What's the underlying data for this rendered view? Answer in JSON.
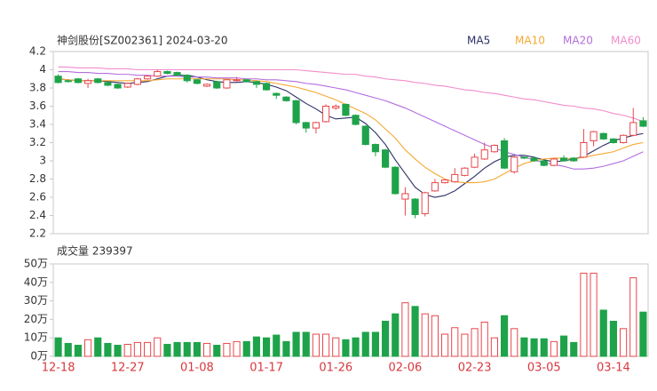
{
  "chart_data": [
    {
      "type": "candlestick",
      "title": "神剑股份[SZ002361] 2024-03-20",
      "categories": [
        "12-18",
        null,
        null,
        null,
        null,
        null,
        null,
        "12-27",
        null,
        null,
        null,
        null,
        null,
        null,
        "01-08",
        null,
        null,
        null,
        null,
        null,
        null,
        "01-17",
        null,
        null,
        null,
        null,
        null,
        null,
        "01-26",
        null,
        null,
        null,
        null,
        null,
        null,
        "02-06",
        null,
        null,
        null,
        null,
        null,
        null,
        "02-23",
        null,
        null,
        null,
        null,
        null,
        null,
        "03-05",
        null,
        null,
        null,
        null,
        null,
        null,
        "03-14",
        null,
        null,
        null
      ],
      "open": [
        3.93,
        3.88,
        3.9,
        3.85,
        3.9,
        3.86,
        3.84,
        3.81,
        3.84,
        3.9,
        3.93,
        3.98,
        3.97,
        3.94,
        3.89,
        3.82,
        3.87,
        3.8,
        3.88,
        3.89,
        3.87,
        3.85,
        3.74,
        3.7,
        3.66,
        3.42,
        3.36,
        3.43,
        3.58,
        3.62,
        3.5,
        3.38,
        3.18,
        3.12,
        2.93,
        2.58,
        2.58,
        2.42,
        2.67,
        2.76,
        2.77,
        2.84,
        2.93,
        3.02,
        3.1,
        3.22,
        2.88,
        3.04,
        3.03,
        3.0,
        2.95,
        3.03,
        3.03,
        3.04,
        3.22,
        3.3,
        3.24,
        3.2,
        3.28,
        3.44
      ],
      "high": [
        3.95,
        3.89,
        3.91,
        3.9,
        3.91,
        3.87,
        3.85,
        3.86,
        3.91,
        3.94,
        4.0,
        3.99,
        3.98,
        3.95,
        3.9,
        3.85,
        3.88,
        3.9,
        3.92,
        3.9,
        3.88,
        3.86,
        3.75,
        3.71,
        3.67,
        3.43,
        3.43,
        3.62,
        3.62,
        3.63,
        3.51,
        3.39,
        3.19,
        3.13,
        2.94,
        2.71,
        2.59,
        2.66,
        2.8,
        2.8,
        2.92,
        2.93,
        3.08,
        3.2,
        3.18,
        3.25,
        3.05,
        3.05,
        3.04,
        3.01,
        3.03,
        3.06,
        3.04,
        3.35,
        3.33,
        3.31,
        3.25,
        3.29,
        3.58,
        3.48
      ],
      "low": [
        3.85,
        3.86,
        3.85,
        3.8,
        3.85,
        3.82,
        3.79,
        3.8,
        3.83,
        3.89,
        3.92,
        3.95,
        3.93,
        3.86,
        3.84,
        3.81,
        3.79,
        3.79,
        3.87,
        3.86,
        3.8,
        3.77,
        3.68,
        3.65,
        3.4,
        3.31,
        3.3,
        3.42,
        3.56,
        3.49,
        3.39,
        3.17,
        3.05,
        2.92,
        2.63,
        2.4,
        2.37,
        2.39,
        2.66,
        2.75,
        2.76,
        2.83,
        2.92,
        3.01,
        3.09,
        2.91,
        2.86,
        3.02,
        2.99,
        2.94,
        2.94,
        2.99,
        2.99,
        3.03,
        3.16,
        3.23,
        3.19,
        3.19,
        3.27,
        3.37
      ],
      "close": [
        3.86,
        3.87,
        3.86,
        3.88,
        3.86,
        3.83,
        3.8,
        3.85,
        3.9,
        3.93,
        3.98,
        3.96,
        3.94,
        3.88,
        3.85,
        3.84,
        3.8,
        3.89,
        3.89,
        3.87,
        3.84,
        3.78,
        3.72,
        3.66,
        3.42,
        3.36,
        3.42,
        3.6,
        3.6,
        3.5,
        3.4,
        3.18,
        3.1,
        2.93,
        2.64,
        2.64,
        2.41,
        2.65,
        2.76,
        2.79,
        2.85,
        2.92,
        3.04,
        3.12,
        3.17,
        2.92,
        3.04,
        3.03,
        3.0,
        2.95,
        3.02,
        3.0,
        3.0,
        3.2,
        3.32,
        3.24,
        3.2,
        3.28,
        3.42,
        3.38
      ],
      "up_color": "#e8474c",
      "down_color": "#1fa34a",
      "series": [
        {
          "name": "MA5",
          "color": "#2b2f66",
          "values": [
            3.9,
            3.89,
            3.88,
            3.88,
            3.88,
            3.87,
            3.86,
            3.85,
            3.86,
            3.87,
            3.9,
            3.93,
            3.94,
            3.94,
            3.92,
            3.89,
            3.87,
            3.86,
            3.86,
            3.87,
            3.86,
            3.84,
            3.81,
            3.77,
            3.7,
            3.63,
            3.57,
            3.5,
            3.46,
            3.47,
            3.48,
            3.41,
            3.31,
            3.18,
            3.01,
            2.86,
            2.71,
            2.63,
            2.6,
            2.62,
            2.67,
            2.75,
            2.83,
            2.92,
            2.99,
            3.04,
            3.06,
            3.06,
            3.04,
            3.01,
            2.99,
            3.0,
            3.02,
            3.05,
            3.11,
            3.17,
            3.22,
            3.25,
            3.28,
            3.3
          ]
        },
        {
          "name": "MA10",
          "color": "#f5a833",
          "values": [
            3.9,
            3.89,
            3.88,
            3.88,
            3.88,
            3.88,
            3.88,
            3.88,
            3.88,
            3.88,
            3.89,
            3.9,
            3.9,
            3.9,
            3.9,
            3.9,
            3.9,
            3.9,
            3.89,
            3.89,
            3.88,
            3.87,
            3.85,
            3.83,
            3.81,
            3.78,
            3.75,
            3.71,
            3.67,
            3.62,
            3.57,
            3.52,
            3.45,
            3.35,
            3.25,
            3.12,
            3.02,
            2.93,
            2.86,
            2.8,
            2.77,
            2.76,
            2.76,
            2.77,
            2.8,
            2.86,
            2.92,
            2.97,
            3.0,
            3.02,
            3.03,
            3.03,
            3.02,
            3.04,
            3.06,
            3.08,
            3.1,
            3.14,
            3.18,
            3.2
          ]
        },
        {
          "name": "MA20",
          "color": "#b36ee0",
          "values": [
            3.98,
            3.98,
            3.97,
            3.97,
            3.96,
            3.96,
            3.95,
            3.95,
            3.94,
            3.94,
            3.93,
            3.93,
            3.93,
            3.92,
            3.92,
            3.92,
            3.91,
            3.91,
            3.91,
            3.9,
            3.9,
            3.89,
            3.89,
            3.88,
            3.87,
            3.85,
            3.84,
            3.82,
            3.8,
            3.78,
            3.75,
            3.72,
            3.69,
            3.66,
            3.62,
            3.58,
            3.53,
            3.48,
            3.43,
            3.38,
            3.33,
            3.28,
            3.23,
            3.18,
            3.14,
            3.1,
            3.07,
            3.04,
            3.01,
            2.98,
            2.96,
            2.94,
            2.91,
            2.91,
            2.92,
            2.94,
            2.97,
            3.0,
            3.05,
            3.1
          ]
        },
        {
          "name": "MA60",
          "color": "#f28ccb",
          "values": [
            4.03,
            4.03,
            4.02,
            4.02,
            4.02,
            4.01,
            4.01,
            4.01,
            4.0,
            4.0,
            4.0,
            4.0,
            4.0,
            4.0,
            4.0,
            4.0,
            4.0,
            4.0,
            4.0,
            4.0,
            4.0,
            4.0,
            4.0,
            4.0,
            4.0,
            3.99,
            3.98,
            3.97,
            3.96,
            3.95,
            3.95,
            3.93,
            3.92,
            3.9,
            3.89,
            3.88,
            3.86,
            3.85,
            3.83,
            3.82,
            3.8,
            3.78,
            3.77,
            3.75,
            3.74,
            3.72,
            3.7,
            3.68,
            3.67,
            3.65,
            3.63,
            3.61,
            3.6,
            3.58,
            3.57,
            3.55,
            3.52,
            3.5,
            3.47,
            3.43
          ]
        }
      ],
      "ylim": [
        2.2,
        4.2
      ],
      "yticks": [
        4.2,
        4,
        3.8,
        3.6,
        3.4,
        3.2,
        3,
        2.8,
        2.6,
        2.4,
        2.2
      ]
    },
    {
      "type": "bar",
      "title": "成交量 239397",
      "values": [
        10,
        7,
        6,
        9,
        10,
        7,
        6,
        6.5,
        7.5,
        7.5,
        10,
        6.5,
        7.5,
        7.5,
        7.5,
        7,
        6,
        7,
        8,
        8,
        10.5,
        10,
        11.5,
        8,
        13,
        13,
        12,
        12,
        10,
        9,
        10,
        13,
        13,
        19,
        23,
        29,
        27,
        23,
        22,
        12,
        15.5,
        12,
        15,
        18.5,
        10,
        22,
        15,
        10,
        9.5,
        9.5,
        8,
        11,
        7.5,
        45,
        45,
        25,
        19,
        15,
        42.5,
        23.94
      ],
      "ylim": [
        0,
        50
      ],
      "yticks": [
        {
          "value": 50,
          "label": "50万"
        },
        {
          "value": 40,
          "label": "40万"
        },
        {
          "value": 30,
          "label": "30万"
        },
        {
          "value": 20,
          "label": "20万"
        },
        {
          "value": 10,
          "label": "10万"
        },
        {
          "value": 0,
          "label": "0万"
        }
      ]
    }
  ]
}
